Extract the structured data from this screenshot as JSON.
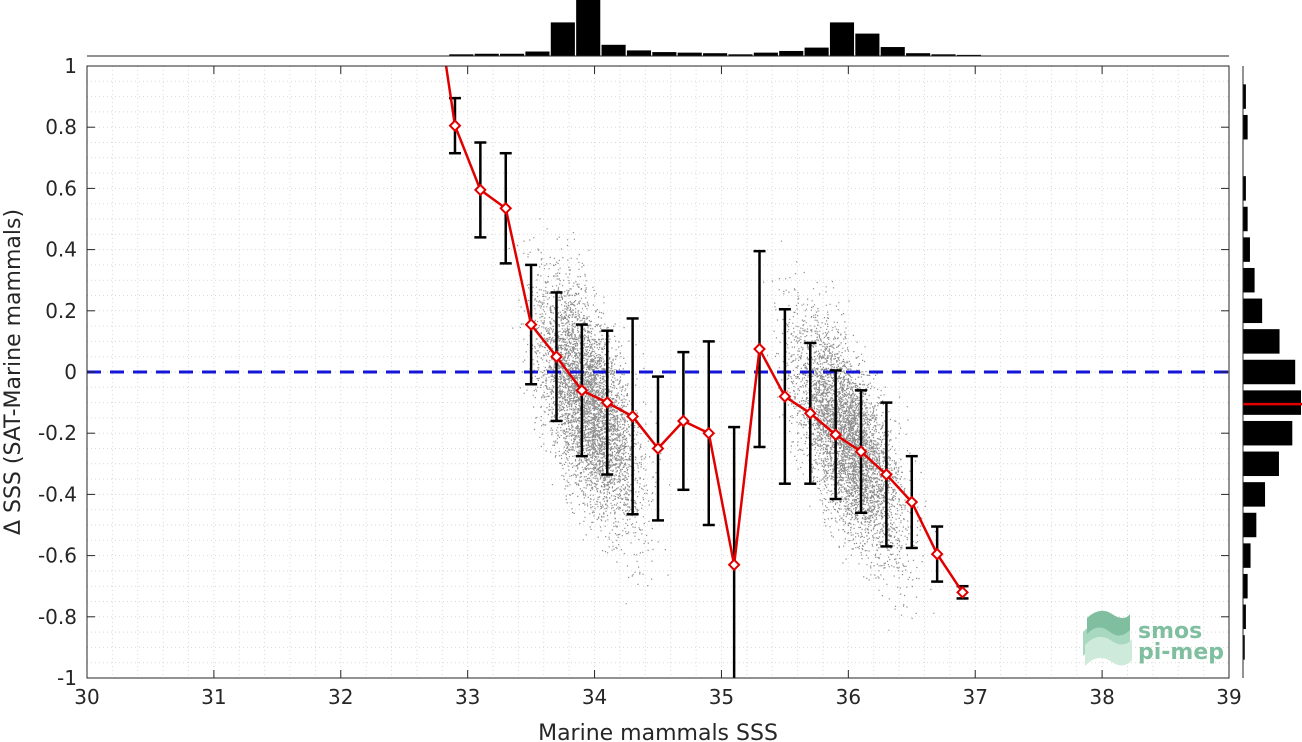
{
  "chart_data": {
    "type": "scatter",
    "xlabel": "Marine mammals SSS",
    "ylabel": "Δ SSS (SAT-Marine mammals)",
    "xlim": [
      30,
      39
    ],
    "ylim": [
      -1,
      1
    ],
    "xticks": [
      "30",
      "31",
      "32",
      "33",
      "34",
      "35",
      "36",
      "37",
      "38",
      "39"
    ],
    "yticks": [
      "-1",
      "-0.8",
      "-0.6",
      "-0.4",
      "-0.2",
      "0",
      "0.2",
      "0.4",
      "0.6",
      "0.8",
      "1"
    ],
    "grid": "dotted minor grid",
    "reference_line": {
      "y": 0,
      "color": "#1515d8",
      "style": "dashed"
    },
    "mean_bias": -0.105,
    "binned_mean": {
      "color": "#e00000",
      "marker": "diamond",
      "x": [
        32.9,
        33.1,
        33.3,
        33.5,
        33.7,
        33.9,
        34.1,
        34.3,
        34.5,
        34.7,
        34.9,
        35.1,
        35.3,
        35.5,
        35.7,
        35.9,
        36.1,
        36.3,
        36.5,
        36.7,
        36.9
      ],
      "y": [
        0.805,
        0.595,
        0.535,
        0.155,
        0.05,
        -0.06,
        -0.1,
        -0.145,
        -0.25,
        -0.16,
        -0.2,
        -0.63,
        0.075,
        -0.08,
        -0.135,
        -0.205,
        -0.26,
        -0.335,
        -0.425,
        -0.595,
        -0.72
      ],
      "err": [
        0.09,
        0.155,
        0.18,
        0.195,
        0.21,
        0.215,
        0.235,
        0.32,
        0.235,
        0.225,
        0.3,
        0.45,
        0.32,
        0.285,
        0.23,
        0.21,
        0.2,
        0.235,
        0.15,
        0.09,
        0.02
      ]
    },
    "line_start": {
      "x": 32.83,
      "y": 1.0
    },
    "scatter_clusters": [
      {
        "x_center": 33.95,
        "y_center": -0.1,
        "spread_x": 0.28,
        "spread_y": 0.22
      },
      {
        "x_center": 36.0,
        "y_center": -0.22,
        "spread_x": 0.3,
        "spread_y": 0.2
      }
    ],
    "x_histogram": {
      "bin_centers": [
        32.95,
        33.15,
        33.35,
        33.55,
        33.75,
        33.95,
        34.15,
        34.35,
        34.55,
        34.75,
        34.95,
        35.15,
        35.35,
        35.55,
        35.75,
        35.95,
        36.15,
        36.35,
        36.55,
        36.75,
        36.95
      ],
      "counts": [
        0.3,
        0.4,
        0.4,
        0.8,
        6.0,
        10.0,
        2.0,
        1.0,
        0.7,
        0.6,
        0.5,
        0.3,
        0.6,
        0.9,
        1.5,
        6.0,
        4.0,
        1.6,
        0.5,
        0.3,
        0.2
      ]
    },
    "y_histogram": {
      "bin_centers": [
        0.9,
        0.8,
        0.6,
        0.5,
        0.4,
        0.3,
        0.2,
        0.1,
        0.0,
        -0.1,
        -0.2,
        -0.3,
        -0.4,
        -0.5,
        -0.6,
        -0.7,
        -0.8,
        -0.9
      ],
      "counts": [
        0.5,
        0.8,
        0.5,
        0.8,
        1.2,
        2.0,
        3.3,
        6.3,
        9.0,
        10.0,
        8.5,
        6.2,
        3.8,
        2.3,
        1.3,
        0.8,
        0.5,
        0.3
      ]
    }
  },
  "logo": {
    "line1": "smos",
    "line2": "pi-mep"
  }
}
